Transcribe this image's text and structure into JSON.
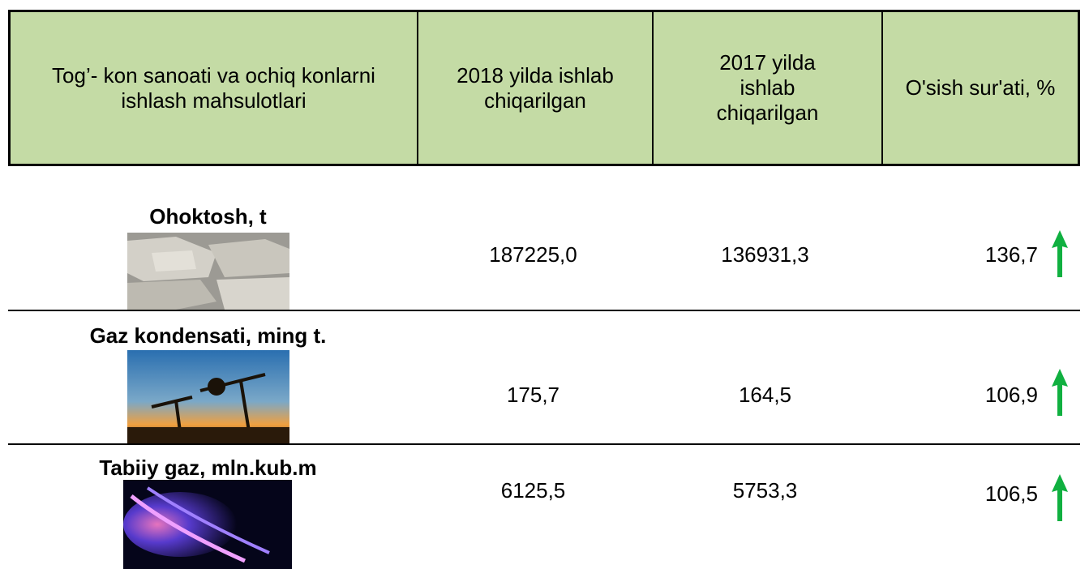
{
  "table": {
    "header": [
      "Tog’- kon sanoati va ochiq konlarni ishlash mahsulotlari",
      "2018 yilda ishlab chiqarilgan",
      "2017 yilda ishlab chiqarilgan",
      "O'sish sur'ati, %"
    ],
    "rows": [
      [
        "Ohoktosh, t",
        "187225,0",
        "136931,3",
        "136,7"
      ],
      [
        "Gaz kondensati, ming t.",
        "175,7",
        "164,5",
        "106,9"
      ],
      [
        "Tabiiy gaz, mln.kub.m",
        "6125,5",
        "5753,3",
        "106,5"
      ]
    ]
  }
}
